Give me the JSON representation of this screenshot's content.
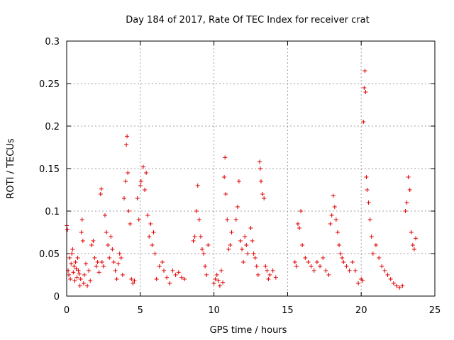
{
  "chart_data": {
    "type": "scatter",
    "title": "Day 184 of 2017, Rate Of TEC Index for receiver crat",
    "xlabel": "GPS time / hours",
    "ylabel": "ROTI / TECUs",
    "xlim": [
      0,
      25
    ],
    "ylim": [
      0,
      0.3
    ],
    "xticks": [
      0,
      5,
      10,
      15,
      20,
      25
    ],
    "yticks": [
      0,
      0.05,
      0.1,
      0.15,
      0.2,
      0.25,
      0.3
    ],
    "xtick_labels": [
      "0",
      "5",
      "10",
      "15",
      "20",
      "25"
    ],
    "ytick_labels": [
      "0",
      "0.05",
      "0.1",
      "0.15",
      "0.2",
      "0.25",
      "0.3"
    ],
    "grid": true,
    "marker": "+",
    "marker_color": "#e00000",
    "series": [
      {
        "points": [
          [
            0.0,
            0.083
          ],
          [
            0.05,
            0.078
          ],
          [
            0.1,
            0.03
          ],
          [
            0.15,
            0.025
          ],
          [
            0.2,
            0.045
          ],
          [
            0.25,
            0.02
          ],
          [
            0.3,
            0.038
          ],
          [
            0.35,
            0.05
          ],
          [
            0.4,
            0.055
          ],
          [
            0.45,
            0.028
          ],
          [
            0.5,
            0.035
          ],
          [
            0.55,
            0.018
          ],
          [
            0.6,
            0.04
          ],
          [
            0.65,
            0.032
          ],
          [
            0.7,
            0.022
          ],
          [
            0.75,
            0.045
          ],
          [
            0.8,
            0.03
          ],
          [
            0.85,
            0.026
          ],
          [
            0.9,
            0.012
          ],
          [
            0.95,
            0.02
          ],
          [
            1.0,
            0.075
          ],
          [
            1.05,
            0.09
          ],
          [
            1.1,
            0.065
          ],
          [
            1.15,
            0.015
          ],
          [
            1.2,
            0.025
          ],
          [
            1.3,
            0.038
          ],
          [
            1.4,
            0.012
          ],
          [
            1.5,
            0.03
          ],
          [
            1.6,
            0.018
          ],
          [
            1.7,
            0.06
          ],
          [
            1.8,
            0.065
          ],
          [
            1.9,
            0.045
          ],
          [
            2.0,
            0.035
          ],
          [
            2.1,
            0.04
          ],
          [
            2.2,
            0.028
          ],
          [
            2.3,
            0.12
          ],
          [
            2.35,
            0.126
          ],
          [
            2.4,
            0.04
          ],
          [
            2.5,
            0.035
          ],
          [
            2.6,
            0.095
          ],
          [
            2.7,
            0.075
          ],
          [
            2.8,
            0.06
          ],
          [
            2.9,
            0.045
          ],
          [
            3.0,
            0.07
          ],
          [
            3.1,
            0.055
          ],
          [
            3.2,
            0.04
          ],
          [
            3.3,
            0.03
          ],
          [
            3.4,
            0.02
          ],
          [
            3.5,
            0.038
          ],
          [
            3.6,
            0.05
          ],
          [
            3.7,
            0.045
          ],
          [
            3.8,
            0.025
          ],
          [
            3.9,
            0.115
          ],
          [
            4.0,
            0.135
          ],
          [
            4.05,
            0.178
          ],
          [
            4.1,
            0.188
          ],
          [
            4.15,
            0.145
          ],
          [
            4.2,
            0.1
          ],
          [
            4.3,
            0.085
          ],
          [
            4.4,
            0.02
          ],
          [
            4.5,
            0.015
          ],
          [
            4.6,
            0.018
          ],
          [
            4.8,
            0.115
          ],
          [
            4.9,
            0.09
          ],
          [
            5.0,
            0.13
          ],
          [
            5.05,
            0.135
          ],
          [
            5.2,
            0.152
          ],
          [
            5.3,
            0.125
          ],
          [
            5.4,
            0.145
          ],
          [
            5.5,
            0.095
          ],
          [
            5.6,
            0.07
          ],
          [
            5.7,
            0.085
          ],
          [
            5.8,
            0.06
          ],
          [
            5.9,
            0.075
          ],
          [
            6.0,
            0.05
          ],
          [
            6.1,
            0.02
          ],
          [
            6.3,
            0.035
          ],
          [
            6.5,
            0.04
          ],
          [
            6.6,
            0.03
          ],
          [
            6.8,
            0.022
          ],
          [
            7.0,
            0.015
          ],
          [
            7.2,
            0.03
          ],
          [
            7.4,
            0.025
          ],
          [
            7.6,
            0.028
          ],
          [
            7.8,
            0.022
          ],
          [
            8.0,
            0.02
          ],
          [
            8.6,
            0.065
          ],
          [
            8.7,
            0.07
          ],
          [
            8.8,
            0.1
          ],
          [
            8.9,
            0.13
          ],
          [
            9.0,
            0.09
          ],
          [
            9.1,
            0.07
          ],
          [
            9.2,
            0.055
          ],
          [
            9.3,
            0.05
          ],
          [
            9.4,
            0.035
          ],
          [
            9.5,
            0.025
          ],
          [
            9.6,
            0.06
          ],
          [
            10.0,
            0.015
          ],
          [
            10.1,
            0.02
          ],
          [
            10.2,
            0.025
          ],
          [
            10.3,
            0.018
          ],
          [
            10.4,
            0.012
          ],
          [
            10.5,
            0.03
          ],
          [
            10.6,
            0.016
          ],
          [
            10.7,
            0.14
          ],
          [
            10.75,
            0.163
          ],
          [
            10.8,
            0.12
          ],
          [
            10.9,
            0.09
          ],
          [
            11.0,
            0.055
          ],
          [
            11.1,
            0.06
          ],
          [
            11.2,
            0.075
          ],
          [
            11.5,
            0.09
          ],
          [
            11.6,
            0.105
          ],
          [
            11.7,
            0.135
          ],
          [
            11.8,
            0.065
          ],
          [
            11.9,
            0.055
          ],
          [
            12.0,
            0.04
          ],
          [
            12.1,
            0.07
          ],
          [
            12.2,
            0.06
          ],
          [
            12.3,
            0.05
          ],
          [
            12.5,
            0.08
          ],
          [
            12.6,
            0.065
          ],
          [
            12.7,
            0.05
          ],
          [
            12.8,
            0.045
          ],
          [
            12.9,
            0.035
          ],
          [
            13.0,
            0.025
          ],
          [
            13.1,
            0.158
          ],
          [
            13.15,
            0.15
          ],
          [
            13.2,
            0.135
          ],
          [
            13.3,
            0.12
          ],
          [
            13.4,
            0.115
          ],
          [
            13.5,
            0.035
          ],
          [
            13.6,
            0.03
          ],
          [
            13.7,
            0.02
          ],
          [
            13.8,
            0.025
          ],
          [
            14.0,
            0.03
          ],
          [
            14.2,
            0.022
          ],
          [
            15.5,
            0.04
          ],
          [
            15.6,
            0.035
          ],
          [
            15.7,
            0.085
          ],
          [
            15.8,
            0.08
          ],
          [
            15.9,
            0.1
          ],
          [
            16.0,
            0.06
          ],
          [
            16.2,
            0.045
          ],
          [
            16.4,
            0.04
          ],
          [
            16.6,
            0.035
          ],
          [
            16.8,
            0.03
          ],
          [
            17.0,
            0.04
          ],
          [
            17.2,
            0.035
          ],
          [
            17.4,
            0.045
          ],
          [
            17.6,
            0.03
          ],
          [
            17.8,
            0.025
          ],
          [
            17.9,
            0.085
          ],
          [
            18.0,
            0.095
          ],
          [
            18.1,
            0.118
          ],
          [
            18.2,
            0.105
          ],
          [
            18.3,
            0.09
          ],
          [
            18.4,
            0.075
          ],
          [
            18.5,
            0.06
          ],
          [
            18.6,
            0.05
          ],
          [
            18.7,
            0.045
          ],
          [
            18.8,
            0.04
          ],
          [
            19.0,
            0.035
          ],
          [
            19.2,
            0.03
          ],
          [
            19.4,
            0.04
          ],
          [
            19.6,
            0.03
          ],
          [
            19.8,
            0.015
          ],
          [
            20.0,
            0.02
          ],
          [
            20.1,
            0.018
          ],
          [
            20.15,
            0.205
          ],
          [
            20.2,
            0.245
          ],
          [
            20.25,
            0.265
          ],
          [
            20.3,
            0.24
          ],
          [
            20.35,
            0.14
          ],
          [
            20.4,
            0.125
          ],
          [
            20.5,
            0.11
          ],
          [
            20.6,
            0.09
          ],
          [
            20.7,
            0.07
          ],
          [
            20.8,
            0.05
          ],
          [
            21.0,
            0.06
          ],
          [
            21.2,
            0.045
          ],
          [
            21.4,
            0.035
          ],
          [
            21.6,
            0.03
          ],
          [
            21.8,
            0.025
          ],
          [
            22.0,
            0.02
          ],
          [
            22.2,
            0.015
          ],
          [
            22.4,
            0.012
          ],
          [
            22.6,
            0.01
          ],
          [
            22.8,
            0.012
          ],
          [
            23.0,
            0.1
          ],
          [
            23.1,
            0.11
          ],
          [
            23.2,
            0.14
          ],
          [
            23.3,
            0.125
          ],
          [
            23.4,
            0.075
          ],
          [
            23.5,
            0.06
          ],
          [
            23.6,
            0.055
          ],
          [
            23.7,
            0.068
          ]
        ]
      }
    ]
  }
}
